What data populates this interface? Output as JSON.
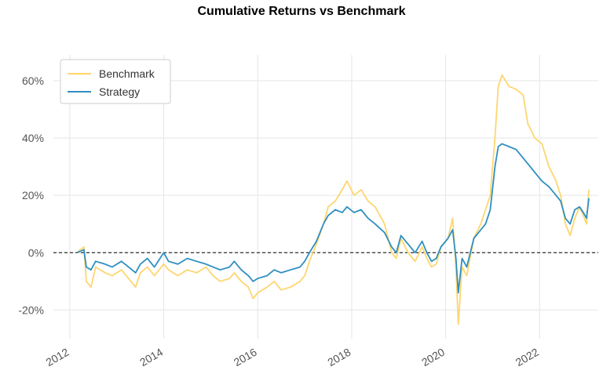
{
  "chart_data": {
    "type": "line",
    "title": "Cumulative Returns vs Benchmark",
    "xlabel": "",
    "ylabel": "",
    "xlim": [
      2011.65,
      2023.25
    ],
    "ylim": [
      -30,
      69
    ],
    "grid": true,
    "legend_position": "top-left",
    "y_ticks": [
      {
        "value": 60,
        "label": "60%"
      },
      {
        "value": 40,
        "label": "40%"
      },
      {
        "value": 20,
        "label": "20%"
      },
      {
        "value": 0,
        "label": "0%"
      },
      {
        "value": -20,
        "label": "-20%"
      }
    ],
    "x_ticks": [
      {
        "value": 2012,
        "label": "2012"
      },
      {
        "value": 2014,
        "label": "2014"
      },
      {
        "value": 2016,
        "label": "2016"
      },
      {
        "value": 2018,
        "label": "2018"
      },
      {
        "value": 2020,
        "label": "2020"
      },
      {
        "value": 2022,
        "label": "2022"
      }
    ],
    "reference_line": {
      "value": 0,
      "style": "dashed",
      "color": "#000000"
    },
    "series": [
      {
        "name": "Benchmark",
        "color": "#fdd66f",
        "x": [
          2012.15,
          2012.3,
          2012.35,
          2012.45,
          2012.55,
          2012.75,
          2012.9,
          2013.1,
          2013.25,
          2013.4,
          2013.5,
          2013.65,
          2013.8,
          2014.0,
          2014.1,
          2014.3,
          2014.5,
          2014.7,
          2014.9,
          2015.05,
          2015.2,
          2015.4,
          2015.5,
          2015.65,
          2015.8,
          2015.9,
          2016.0,
          2016.2,
          2016.35,
          2016.5,
          2016.7,
          2016.9,
          2017.0,
          2017.1,
          2017.25,
          2017.4,
          2017.5,
          2017.65,
          2017.8,
          2017.9,
          2018.05,
          2018.2,
          2018.35,
          2018.5,
          2018.7,
          2018.85,
          2018.95,
          2019.05,
          2019.2,
          2019.35,
          2019.5,
          2019.6,
          2019.7,
          2019.8,
          2019.9,
          2020.05,
          2020.15,
          2020.22,
          2020.27,
          2020.35,
          2020.45,
          2020.6,
          2020.75,
          2020.85,
          2020.95,
          2021.05,
          2021.12,
          2021.2,
          2021.35,
          2021.5,
          2021.65,
          2021.75,
          2021.9,
          2022.05,
          2022.2,
          2022.35,
          2022.45,
          2022.55,
          2022.65,
          2022.75,
          2022.85,
          2022.93,
          2023.0,
          2023.05
        ],
        "values": [
          0,
          2,
          -10,
          -12,
          -5,
          -7,
          -8,
          -6,
          -9,
          -12,
          -7,
          -5,
          -8,
          -4,
          -6,
          -8,
          -6,
          -7,
          -5,
          -8,
          -10,
          -9,
          -7,
          -10,
          -12,
          -16,
          -14,
          -12,
          -10,
          -13,
          -12,
          -10,
          -8,
          -3,
          3,
          10,
          16,
          18,
          22,
          25,
          20,
          22,
          18,
          16,
          10,
          0,
          -2,
          5,
          0,
          -3,
          2,
          -2,
          -5,
          -4,
          2,
          5,
          12,
          -5,
          -25,
          -5,
          -8,
          5,
          10,
          15,
          20,
          40,
          58,
          62,
          58,
          57,
          55,
          45,
          40,
          38,
          30,
          25,
          20,
          10,
          6,
          12,
          16,
          13,
          10,
          22
        ]
      },
      {
        "name": "Strategy",
        "color": "#2f8fc1",
        "x": [
          2012.15,
          2012.3,
          2012.35,
          2012.45,
          2012.55,
          2012.75,
          2012.9,
          2013.1,
          2013.25,
          2013.4,
          2013.5,
          2013.65,
          2013.8,
          2014.0,
          2014.1,
          2014.3,
          2014.5,
          2014.7,
          2014.9,
          2015.05,
          2015.2,
          2015.4,
          2015.5,
          2015.65,
          2015.8,
          2015.9,
          2016.0,
          2016.2,
          2016.35,
          2016.5,
          2016.7,
          2016.9,
          2017.0,
          2017.1,
          2017.25,
          2017.4,
          2017.5,
          2017.65,
          2017.8,
          2017.9,
          2018.05,
          2018.2,
          2018.35,
          2018.5,
          2018.7,
          2018.85,
          2018.95,
          2019.05,
          2019.2,
          2019.35,
          2019.5,
          2019.6,
          2019.7,
          2019.8,
          2019.9,
          2020.05,
          2020.15,
          2020.22,
          2020.27,
          2020.35,
          2020.45,
          2020.6,
          2020.75,
          2020.85,
          2020.95,
          2021.05,
          2021.12,
          2021.2,
          2021.35,
          2021.5,
          2021.65,
          2021.75,
          2021.9,
          2022.05,
          2022.2,
          2022.35,
          2022.45,
          2022.55,
          2022.65,
          2022.75,
          2022.85,
          2022.93,
          2023.0,
          2023.05
        ],
        "values": [
          0,
          1,
          -5,
          -6,
          -3,
          -4,
          -5,
          -3,
          -5,
          -7,
          -4,
          -2,
          -5,
          0,
          -3,
          -4,
          -2,
          -3,
          -4,
          -5,
          -6,
          -5,
          -3,
          -6,
          -8,
          -10,
          -9,
          -8,
          -6,
          -7,
          -6,
          -5,
          -3,
          0,
          4,
          10,
          13,
          15,
          14,
          16,
          14,
          15,
          12,
          10,
          7,
          2,
          0,
          6,
          3,
          0,
          4,
          0,
          -3,
          -2,
          2,
          5,
          8,
          -2,
          -14,
          -2,
          -5,
          5,
          8,
          10,
          15,
          30,
          37,
          38,
          37,
          36,
          33,
          31,
          28,
          25,
          23,
          20,
          18,
          12,
          10,
          15,
          16,
          14,
          12,
          19
        ]
      }
    ]
  }
}
